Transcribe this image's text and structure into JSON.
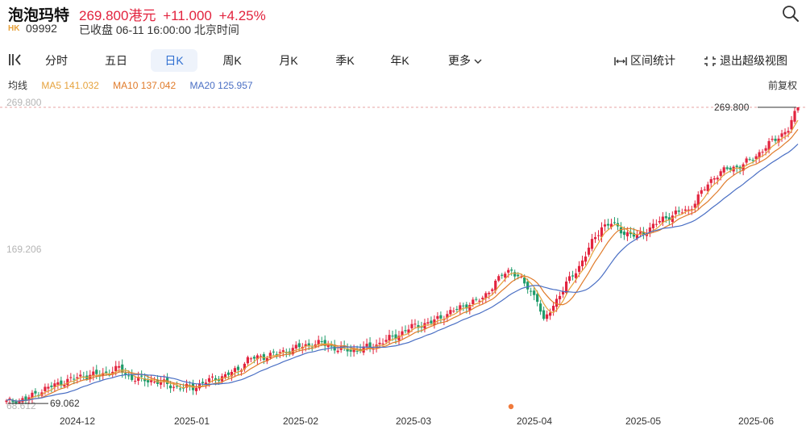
{
  "header": {
    "stock_name": "泡泡玛特",
    "price": "269.800港元",
    "change": "+11.000",
    "change_pct": "+4.25%",
    "market": "HK",
    "code": "09992",
    "status": "已收盘 06-11 16:00:00 北京时间",
    "search_icon": "search-icon",
    "up_color": "#e2233e",
    "down_color": "#1f9c6b"
  },
  "tabs": {
    "items": [
      "分时",
      "五日",
      "日K",
      "周K",
      "月K",
      "季K",
      "年K",
      "更多"
    ],
    "active": "日K",
    "interval_stats": "区间统计",
    "exit_fullscreen": "退出超级视图"
  },
  "ma": {
    "label": "均线",
    "ma5": "MA5 141.032",
    "ma10": "MA10 137.042",
    "ma20": "MA20 125.957",
    "ma5_color": "#e6a23c",
    "ma10_color": "#e07b2a",
    "ma20_color": "#4a6fc4",
    "adjust_label": "前复权"
  },
  "chart_data": {
    "type": "candlestick",
    "y_axis_labels": [
      "269.800",
      "169.206",
      "68.612"
    ],
    "ylim": [
      68.612,
      269.8
    ],
    "x_tick_labels": [
      "2024-12",
      "2025-01",
      "2025-02",
      "2025-03",
      "2025-04",
      "2025-05",
      "2025-06"
    ],
    "high_marker": "269.800",
    "low_marker": "69.062",
    "close_anchors": [
      [
        0,
        70
      ],
      [
        6,
        72
      ],
      [
        12,
        79
      ],
      [
        18,
        84
      ],
      [
        24,
        88
      ],
      [
        30,
        89
      ],
      [
        35,
        93
      ],
      [
        38,
        87
      ],
      [
        42,
        85
      ],
      [
        47,
        84
      ],
      [
        53,
        80
      ],
      [
        58,
        80
      ],
      [
        62,
        84
      ],
      [
        68,
        88
      ],
      [
        72,
        92
      ],
      [
        75,
        99
      ],
      [
        80,
        101
      ],
      [
        86,
        104
      ],
      [
        92,
        108
      ],
      [
        98,
        110
      ],
      [
        103,
        106
      ],
      [
        108,
        105
      ],
      [
        114,
        108
      ],
      [
        118,
        112
      ],
      [
        122,
        116
      ],
      [
        126,
        121
      ],
      [
        132,
        124
      ],
      [
        138,
        131
      ],
      [
        144,
        137
      ],
      [
        148,
        140
      ],
      [
        150,
        146
      ],
      [
        154,
        156
      ],
      [
        157,
        160
      ],
      [
        161,
        150
      ],
      [
        165,
        140
      ],
      [
        167,
        124
      ],
      [
        170,
        136
      ],
      [
        174,
        150
      ],
      [
        178,
        162
      ],
      [
        182,
        178
      ],
      [
        185,
        189
      ],
      [
        188,
        191
      ],
      [
        192,
        185
      ],
      [
        196,
        182
      ],
      [
        200,
        188
      ],
      [
        204,
        194
      ],
      [
        208,
        198
      ],
      [
        212,
        200
      ],
      [
        216,
        212
      ],
      [
        220,
        223
      ],
      [
        224,
        228
      ],
      [
        228,
        230
      ],
      [
        232,
        235
      ],
      [
        236,
        243
      ],
      [
        240,
        250
      ],
      [
        243,
        255
      ],
      [
        246,
        269.8
      ]
    ],
    "candle_count": 247,
    "ma_periods": [
      5,
      10,
      20
    ]
  }
}
